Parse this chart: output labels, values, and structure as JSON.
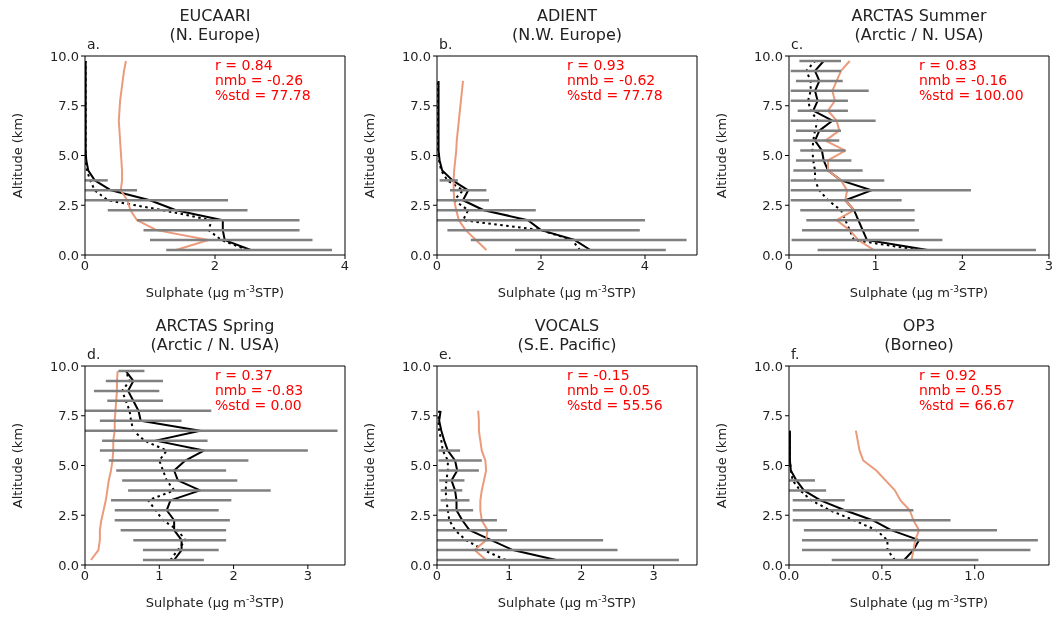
{
  "chart_data": [
    {
      "type": "line",
      "title": "EUCAARI",
      "subtitle": "(N. Europe)",
      "xlabel": "Sulphate (μg m$^{-3}$STP)",
      "ylabel": "Altitude (km)",
      "annotations": [
        "a.",
        "r = 0.84",
        "nmb = -0.26",
        "%std = 77.78"
      ],
      "xlim": [
        0,
        4
      ],
      "xticks": [
        0,
        2,
        4
      ],
      "ylim": [
        0,
        10
      ],
      "yticks": [
        {
          "value": 0,
          "label": "0.0"
        },
        {
          "value": 2.5,
          "label": "2.5"
        },
        {
          "value": 5,
          "label": "5.0"
        },
        {
          "value": 7.5,
          "label": "7.5"
        },
        {
          "value": 10,
          "label": "10.0"
        }
      ],
      "series": [
        {
          "color": "#000000",
          "line_style": "solid",
          "x": [
            2.55,
            2.15,
            2.12,
            2.12,
            1.4,
            1.0,
            0.4,
            0.15,
            0.05,
            0.02,
            0.01,
            0.01,
            0.01,
            0.01,
            0.01,
            0.01,
            0.01,
            0.01,
            0.01,
            0.01
          ],
          "values": [
            0.25,
            0.75,
            1.25,
            1.75,
            2.25,
            2.75,
            3.25,
            3.75,
            4.25,
            4.75,
            5.25,
            5.75,
            6.25,
            6.75,
            7.25,
            7.75,
            8.25,
            8.75,
            9.25,
            9.75
          ],
          "xerrors": [
            [
              1.25,
              3.8
            ],
            [
              1.0,
              3.5
            ],
            [
              0.9,
              3.3
            ],
            [
              0.8,
              3.3
            ],
            [
              0.35,
              2.5
            ],
            [
              0,
              2.2
            ],
            [
              0,
              0.8
            ],
            [
              0,
              0.35
            ],
            null,
            null,
            null,
            null,
            null,
            null,
            null,
            null,
            null,
            null,
            null,
            null
          ]
        },
        {
          "color": "#000000",
          "line_style": "dotted",
          "x": [
            2.5,
            2.1,
            1.9,
            1.95,
            1.2,
            0.35,
            0.15,
            0.08,
            0.03,
            0.01,
            0.01,
            0.01,
            0.01,
            0.01,
            0.01,
            0.01,
            0.01,
            0.01,
            0.01,
            0.01
          ],
          "values": [
            0.25,
            0.75,
            1.25,
            1.75,
            2.25,
            2.75,
            3.25,
            3.75,
            4.25,
            4.75,
            5.25,
            5.75,
            6.25,
            6.75,
            7.25,
            7.75,
            8.25,
            8.75,
            9.25,
            9.75
          ]
        },
        {
          "color": "#ec9a7c",
          "line_style": "solid",
          "x": [
            1.4,
            1.9,
            1.1,
            0.8,
            0.7,
            0.65,
            0.55,
            0.57,
            0.57,
            0.56,
            0.55,
            0.54,
            0.53,
            0.52,
            0.53,
            0.54,
            0.56,
            0.58,
            0.6,
            0.63
          ],
          "values": [
            0.25,
            0.75,
            1.25,
            1.75,
            2.25,
            2.75,
            3.25,
            3.75,
            4.25,
            4.75,
            5.25,
            5.75,
            6.25,
            6.75,
            7.25,
            7.75,
            8.25,
            8.75,
            9.25,
            9.75
          ]
        }
      ]
    },
    {
      "type": "line",
      "title": "ADIENT",
      "subtitle": "(N.W. Europe)",
      "xlabel": "Sulphate (μg m$^{-3}$STP)",
      "ylabel": "Altitude (km)",
      "annotations": [
        "b.",
        "r = 0.93",
        "nmb = -0.62",
        "%std = 77.78"
      ],
      "xlim": [
        0,
        5
      ],
      "xticks": [
        0,
        2,
        4
      ],
      "ylim": [
        0,
        10
      ],
      "yticks": [
        {
          "value": 0,
          "label": "0.0"
        },
        {
          "value": 2.5,
          "label": "2.5"
        },
        {
          "value": 5,
          "label": "5.0"
        },
        {
          "value": 7.5,
          "label": "7.5"
        },
        {
          "value": 10,
          "label": "10.0"
        }
      ],
      "series": [
        {
          "color": "#000000",
          "line_style": "solid",
          "x": [
            2.95,
            2.65,
            2.0,
            1.75,
            0.9,
            0.5,
            0.6,
            0.3,
            0.1,
            0.05,
            0.03,
            0.03,
            0.03,
            0.03,
            0.03,
            0.03,
            0.03,
            0.03
          ],
          "values": [
            0.25,
            0.75,
            1.25,
            1.75,
            2.25,
            2.75,
            3.25,
            3.75,
            4.25,
            4.75,
            5.25,
            5.75,
            6.25,
            6.75,
            7.25,
            7.75,
            8.25,
            8.75
          ],
          "xerrors": [
            [
              1.5,
              4.4
            ],
            [
              0.65,
              4.8
            ],
            [
              0.2,
              3.9
            ],
            [
              0,
              4.0
            ],
            [
              0,
              1.9
            ],
            [
              0,
              1.0
            ],
            [
              0.25,
              0.95
            ],
            [
              0.05,
              0.4
            ],
            null,
            null,
            null,
            null,
            null,
            null,
            null,
            null,
            null,
            null
          ]
        },
        {
          "color": "#000000",
          "line_style": "dotted",
          "x": [
            2.75,
            2.6,
            2.0,
            0.5,
            0.6,
            0.33,
            0.5,
            0.2,
            0.08,
            0.04,
            0.02,
            0.02,
            0.02,
            0.02,
            0.02,
            0.02,
            0.02,
            0.02
          ],
          "values": [
            0.25,
            0.75,
            1.25,
            1.75,
            2.25,
            2.75,
            3.25,
            3.75,
            4.25,
            4.75,
            5.25,
            5.75,
            6.25,
            6.75,
            7.25,
            7.75,
            8.25,
            8.75
          ]
        },
        {
          "color": "#ec9a7c",
          "line_style": "solid",
          "x": [
            0.95,
            0.75,
            0.55,
            0.42,
            0.37,
            0.33,
            0.32,
            0.32,
            0.33,
            0.35,
            0.37,
            0.38,
            0.4,
            0.42,
            0.44,
            0.46,
            0.48,
            0.5
          ],
          "values": [
            0.25,
            0.75,
            1.25,
            1.75,
            2.25,
            2.75,
            3.25,
            3.75,
            4.25,
            4.75,
            5.25,
            5.75,
            6.25,
            6.75,
            7.25,
            7.75,
            8.25,
            8.75
          ]
        }
      ]
    },
    {
      "type": "line",
      "title": "ARCTAS Summer",
      "subtitle": "(Arctic / N. USA)",
      "xlabel": "Sulphate (μg m$^{-3}$STP)",
      "ylabel": "Altitude (km)",
      "annotations": [
        "c.",
        "r = 0.83",
        "nmb = -0.16",
        "%std = 100.00"
      ],
      "xlim": [
        0,
        3
      ],
      "xticks": [
        0,
        1,
        2,
        3
      ],
      "ylim": [
        0,
        10
      ],
      "yticks": [
        {
          "value": 0,
          "label": "0.0"
        },
        {
          "value": 2.5,
          "label": "2.5"
        },
        {
          "value": 5,
          "label": "5.0"
        },
        {
          "value": 7.5,
          "label": "7.5"
        },
        {
          "value": 10,
          "label": "10.0"
        }
      ],
      "series": [
        {
          "color": "#000000",
          "line_style": "solid",
          "x": [
            1.6,
            0.9,
            0.85,
            0.8,
            0.75,
            0.65,
            0.95,
            0.6,
            0.45,
            0.4,
            0.38,
            0.3,
            0.35,
            0.5,
            0.28,
            0.33,
            0.3,
            0.35,
            0.3,
            0.4
          ],
          "values": [
            0.25,
            0.75,
            1.25,
            1.75,
            2.25,
            2.75,
            3.25,
            3.75,
            4.25,
            4.75,
            5.25,
            5.75,
            6.25,
            6.75,
            7.25,
            7.75,
            8.25,
            8.75,
            9.25,
            9.75
          ],
          "xerrors": [
            [
              0.33,
              2.85
            ],
            [
              0.03,
              1.77
            ],
            [
              0.15,
              1.5
            ],
            [
              0.2,
              1.45
            ],
            [
              0.13,
              1.45
            ],
            [
              0.02,
              1.3
            ],
            [
              0.02,
              2.1
            ],
            [
              0.02,
              1.1
            ],
            [
              0.05,
              0.85
            ],
            [
              0.08,
              0.72
            ],
            [
              0.13,
              0.65
            ],
            [
              0.05,
              0.58
            ],
            [
              0.08,
              0.6
            ],
            [
              0.02,
              1.0
            ],
            [
              0.1,
              0.68
            ],
            [
              0.02,
              0.68
            ],
            [
              0.02,
              0.92
            ],
            [
              0.08,
              0.62
            ],
            [
              0.02,
              0.6
            ],
            [
              0.12,
              0.6
            ]
          ]
        },
        {
          "color": "#000000",
          "line_style": "dotted",
          "x": [
            1.5,
            0.75,
            0.7,
            0.65,
            0.6,
            0.45,
            0.35,
            0.3,
            0.3,
            0.28,
            0.27,
            0.28,
            0.3,
            0.33,
            0.25,
            0.22,
            0.25,
            0.25,
            0.2,
            0.3
          ],
          "values": [
            0.25,
            0.75,
            1.25,
            1.75,
            2.25,
            2.75,
            3.25,
            3.75,
            4.25,
            4.75,
            5.25,
            5.75,
            6.25,
            6.75,
            7.25,
            7.75,
            8.25,
            8.75,
            9.25,
            9.75
          ]
        },
        {
          "color": "#ec9a7c",
          "line_style": "solid",
          "x": [
            0.98,
            0.8,
            0.7,
            0.55,
            0.75,
            0.65,
            0.67,
            0.6,
            0.45,
            0.45,
            0.65,
            0.42,
            0.58,
            0.55,
            0.45,
            0.53,
            0.5,
            0.55,
            0.6,
            0.7
          ],
          "values": [
            0.25,
            0.75,
            1.25,
            1.75,
            2.25,
            2.75,
            3.25,
            3.75,
            4.25,
            4.75,
            5.25,
            5.75,
            6.25,
            6.75,
            7.25,
            7.75,
            8.25,
            8.75,
            9.25,
            9.75
          ]
        }
      ]
    },
    {
      "type": "line",
      "title": "ARCTAS Spring",
      "subtitle": "(Arctic / N. USA)",
      "xlabel": "Sulphate (μg m$^{-3}$STP)",
      "ylabel": "Altitude (km)",
      "annotations": [
        "d.",
        "r = 0.37",
        "nmb = -0.83",
        "%std = 0.00"
      ],
      "xlim": [
        0,
        3.5
      ],
      "xticks": [
        0,
        1,
        2,
        3
      ],
      "ylim": [
        0,
        10
      ],
      "yticks": [
        {
          "value": 0,
          "label": "0.0"
        },
        {
          "value": 2.5,
          "label": "2.5"
        },
        {
          "value": 5,
          "label": "5.0"
        },
        {
          "value": 7.5,
          "label": "7.5"
        },
        {
          "value": 10,
          "label": "10.0"
        }
      ],
      "series": [
        {
          "color": "#000000",
          "line_style": "solid",
          "x": [
            1.2,
            1.3,
            1.3,
            1.2,
            1.2,
            1.1,
            1.15,
            1.55,
            1.25,
            1.2,
            1.35,
            1.6,
            0.95,
            1.55,
            0.75,
            0.72,
            0.65,
            0.58,
            0.65,
            0.55
          ],
          "values": [
            0.25,
            0.75,
            1.25,
            1.75,
            2.25,
            2.75,
            3.25,
            3.75,
            4.25,
            4.75,
            5.25,
            5.75,
            6.25,
            6.75,
            7.25,
            7.75,
            8.25,
            8.75,
            9.25,
            9.75
          ],
          "xerrors": [
            [
              0.78,
              1.6
            ],
            [
              0.78,
              1.8
            ],
            [
              0.65,
              1.9
            ],
            [
              0.48,
              1.9
            ],
            [
              0.4,
              1.95
            ],
            [
              0.4,
              1.8
            ],
            [
              0.35,
              1.97
            ],
            [
              0.58,
              2.5
            ],
            [
              0.5,
              2.05
            ],
            [
              0.42,
              1.9
            ],
            [
              0.32,
              2.2
            ],
            [
              0.2,
              3.0
            ],
            [
              0.23,
              1.65
            ],
            [
              0,
              3.4
            ],
            [
              0.2,
              1.3
            ],
            [
              0,
              1.7
            ],
            [
              0.3,
              1.05
            ],
            [
              0.12,
              1.0
            ],
            [
              0.28,
              1.05
            ],
            [
              0.45,
              0.8
            ]
          ]
        },
        {
          "color": "#000000",
          "line_style": "dotted",
          "x": [
            1.15,
            1.25,
            1.35,
            1.25,
            1.05,
            0.95,
            0.85,
            1.2,
            1.1,
            1.05,
            1.0,
            1.1,
            0.8,
            0.65,
            0.62,
            0.6,
            0.55,
            0.5,
            0.6,
            0.55
          ],
          "values": [
            0.25,
            0.75,
            1.25,
            1.75,
            2.25,
            2.75,
            3.25,
            3.75,
            4.25,
            4.75,
            5.25,
            5.75,
            6.25,
            6.75,
            7.25,
            7.75,
            8.25,
            8.75,
            9.25,
            9.75
          ]
        },
        {
          "color": "#ec9a7c",
          "line_style": "solid",
          "x": [
            0.08,
            0.18,
            0.2,
            0.2,
            0.22,
            0.25,
            0.28,
            0.3,
            0.32,
            0.35,
            0.37,
            0.38,
            0.38,
            0.4,
            0.4,
            0.41,
            0.42,
            0.43,
            0.43,
            0.44
          ],
          "values": [
            0.25,
            0.75,
            1.25,
            1.75,
            2.25,
            2.75,
            3.25,
            3.75,
            4.25,
            4.75,
            5.25,
            5.75,
            6.25,
            6.75,
            7.25,
            7.75,
            8.25,
            8.75,
            9.25,
            9.75
          ]
        }
      ]
    },
    {
      "type": "line",
      "title": "VOCALS",
      "subtitle": "(S.E. Pacific)",
      "xlabel": "Sulphate (μg m$^{-3}$STP)",
      "ylabel": "Altitude (km)",
      "annotations": [
        "e.",
        "r = -0.15",
        "nmb = 0.05",
        "%std = 55.56"
      ],
      "xlim": [
        0,
        3.6
      ],
      "xticks": [
        0,
        1,
        2,
        3
      ],
      "ylim": [
        0,
        10
      ],
      "yticks": [
        {
          "value": 0,
          "label": "0.0"
        },
        {
          "value": 2.5,
          "label": "2.5"
        },
        {
          "value": 5,
          "label": "5.0"
        },
        {
          "value": 7.5,
          "label": "7.5"
        },
        {
          "value": 10,
          "label": "10.0"
        }
      ],
      "series": [
        {
          "color": "#000000",
          "line_style": "solid",
          "x": [
            1.65,
            1.05,
            0.75,
            0.45,
            0.35,
            0.27,
            0.27,
            0.25,
            0.2,
            0.28,
            0.25,
            0.15,
            0.1,
            0.06,
            0.03,
            0.05
          ],
          "values": [
            0.25,
            0.75,
            1.25,
            1.75,
            2.25,
            2.75,
            3.25,
            3.75,
            4.25,
            4.75,
            5.25,
            5.75,
            6.25,
            6.75,
            7.25,
            7.75
          ],
          "xerrors": [
            [
              0,
              3.35
            ],
            [
              0,
              2.5
            ],
            [
              0,
              2.3
            ],
            [
              0,
              0.97
            ],
            [
              0,
              0.83
            ],
            [
              0.02,
              0.5
            ],
            [
              0.05,
              0.45
            ],
            [
              0.05,
              0.35
            ],
            [
              0.03,
              0.38
            ],
            [
              0.02,
              0.58
            ],
            [
              0.02,
              0.62
            ],
            [
              0.02,
              0.32
            ],
            null,
            null,
            null,
            null
          ]
        },
        {
          "color": "#000000",
          "line_style": "dotted",
          "x": [
            0.95,
            0.65,
            0.4,
            0.25,
            0.17,
            0.15,
            0.13,
            0.12,
            0.13,
            0.15,
            0.15,
            0.08,
            0.06,
            0.03,
            0.02,
            0.03
          ],
          "values": [
            0.25,
            0.75,
            1.25,
            1.75,
            2.25,
            2.75,
            3.25,
            3.75,
            4.25,
            4.75,
            5.25,
            5.75,
            6.25,
            6.75,
            7.25,
            7.75
          ]
        },
        {
          "color": "#ec9a7c",
          "line_style": "solid",
          "x": [
            0.68,
            0.52,
            0.68,
            0.7,
            0.62,
            0.6,
            0.6,
            0.62,
            0.65,
            0.68,
            0.67,
            0.62,
            0.6,
            0.58,
            0.58,
            0.57
          ],
          "values": [
            0.25,
            0.75,
            1.25,
            1.75,
            2.25,
            2.75,
            3.25,
            3.75,
            4.25,
            4.75,
            5.25,
            5.75,
            6.25,
            6.75,
            7.25,
            7.75
          ]
        }
      ]
    },
    {
      "type": "line",
      "title": "OP3",
      "subtitle": "(Borneo)",
      "xlabel": "Sulphate (μg m$^{-3}$STP)",
      "ylabel": "Altitude (km)",
      "annotations": [
        "f.",
        "r = 0.92",
        "nmb = 0.55",
        "%std = 66.67"
      ],
      "xlim": [
        0,
        1.4
      ],
      "xticks": [
        {
          "value": 0,
          "label": "0.0"
        },
        {
          "value": 0.5,
          "label": "0.5"
        },
        {
          "value": 1,
          "label": "1.0"
        }
      ],
      "ylim": [
        0,
        10
      ],
      "yticks": [
        {
          "value": 0,
          "label": "0.0"
        },
        {
          "value": 2.5,
          "label": "2.5"
        },
        {
          "value": 5,
          "label": "5.0"
        },
        {
          "value": 7.5,
          "label": "7.5"
        },
        {
          "value": 10,
          "label": "10.0"
        }
      ],
      "series": [
        {
          "color": "#000000",
          "line_style": "solid",
          "x": [
            0.62,
            0.67,
            0.7,
            0.55,
            0.45,
            0.3,
            0.17,
            0.08,
            0.04,
            0.01,
            0.005,
            0.005,
            0.005,
            0.005
          ],
          "values": [
            0.25,
            0.75,
            1.25,
            1.75,
            2.25,
            2.75,
            3.25,
            3.75,
            4.25,
            4.75,
            5.25,
            5.75,
            6.25,
            6.75
          ],
          "xerrors": [
            [
              0.23,
              1.02
            ],
            [
              0.07,
              1.3
            ],
            [
              0.07,
              1.34
            ],
            [
              0.08,
              1.12
            ],
            [
              0.02,
              0.87
            ],
            [
              0.02,
              0.67
            ],
            [
              0.02,
              0.3
            ],
            [
              0,
              0.2
            ],
            [
              0,
              0.14
            ],
            null,
            null,
            null,
            null,
            null
          ]
        },
        {
          "color": "#000000",
          "line_style": "dotted",
          "x": [
            0.57,
            0.53,
            0.53,
            0.47,
            0.35,
            0.22,
            0.12,
            0.06,
            0.02,
            0.01,
            0.005,
            0.005,
            0.005,
            0.005
          ],
          "values": [
            0.25,
            0.75,
            1.25,
            1.75,
            2.25,
            2.75,
            3.25,
            3.75,
            4.25,
            4.75,
            5.25,
            5.75,
            6.25,
            6.75
          ]
        },
        {
          "color": "#ec9a7c",
          "line_style": "solid",
          "x": [
            0.66,
            0.67,
            0.68,
            0.7,
            0.67,
            0.65,
            0.6,
            0.57,
            0.52,
            0.47,
            0.4,
            0.38,
            0.37,
            0.36
          ],
          "values": [
            0.25,
            0.75,
            1.25,
            1.75,
            2.25,
            2.75,
            3.25,
            3.75,
            4.25,
            4.75,
            5.25,
            5.75,
            6.25,
            6.75
          ]
        }
      ]
    }
  ]
}
